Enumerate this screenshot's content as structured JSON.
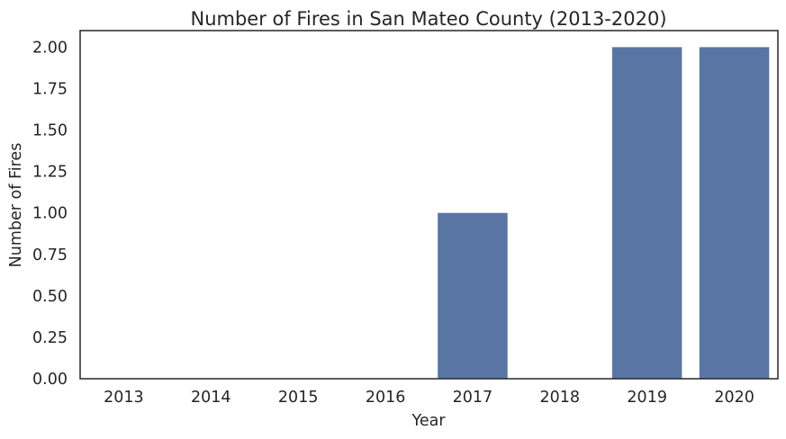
{
  "chart_data": {
    "type": "bar",
    "title": "Number of Fires in San Mateo County (2013-2020)",
    "xlabel": "Year",
    "ylabel": "Number of Fires",
    "categories": [
      "2013",
      "2014",
      "2015",
      "2016",
      "2017",
      "2018",
      "2019",
      "2020"
    ],
    "values": [
      0,
      0,
      0,
      0,
      1,
      0,
      2,
      2
    ],
    "ylim": [
      0,
      2.1
    ],
    "yticks": [
      "0.00",
      "0.25",
      "0.50",
      "0.75",
      "1.00",
      "1.25",
      "1.50",
      "1.75",
      "2.00"
    ],
    "bar_color": "#5975a4",
    "grid": false
  }
}
